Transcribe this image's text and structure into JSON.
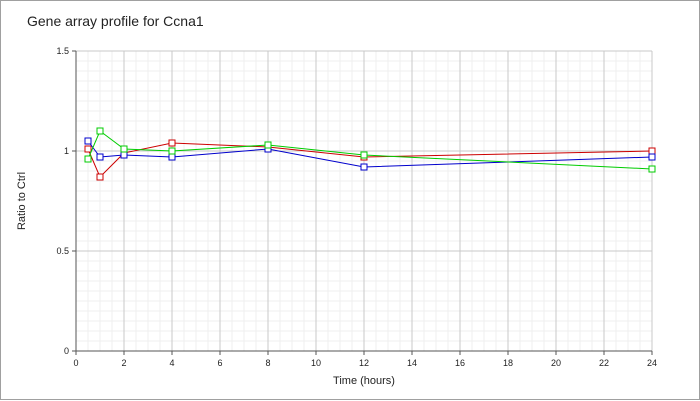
{
  "chart_data": {
    "type": "line",
    "title": "Gene array profile for Ccna1",
    "xlabel": "Time (hours)",
    "ylabel": "Ratio to Ctrl",
    "xlim": [
      0,
      24
    ],
    "ylim": [
      0,
      1.5
    ],
    "x_ticks": [
      0,
      2,
      4,
      6,
      8,
      10,
      12,
      14,
      16,
      18,
      20,
      22,
      24
    ],
    "y_ticks": [
      0,
      0.5,
      1,
      1.5
    ],
    "y_tick_labels": [
      "0",
      "0.5",
      "1",
      "1.5"
    ],
    "grid": true,
    "marker": "square",
    "series": [
      {
        "color": "#cc0000",
        "x": [
          0.5,
          1,
          2,
          4,
          8,
          12,
          24
        ],
        "y": [
          1.01,
          0.87,
          0.99,
          1.04,
          1.02,
          0.97,
          1.0
        ]
      },
      {
        "color": "#0000cc",
        "x": [
          0.5,
          1,
          2,
          4,
          8,
          12,
          24
        ],
        "y": [
          1.05,
          0.97,
          0.98,
          0.97,
          1.01,
          0.92,
          0.97
        ]
      },
      {
        "color": "#00cc00",
        "x": [
          0.5,
          1,
          2,
          4,
          8,
          12,
          24
        ],
        "y": [
          0.96,
          1.1,
          1.01,
          1.0,
          1.03,
          0.98,
          0.91
        ]
      }
    ]
  }
}
